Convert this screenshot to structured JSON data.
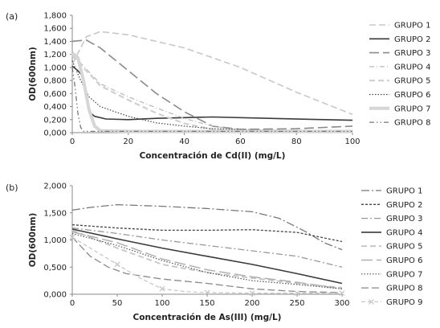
{
  "chart_data": [
    {
      "type": "line",
      "panel_label": "(a)",
      "xlabel": "Concentración de Cd(II) (mg/L)",
      "ylabel": "OD(600nm)",
      "xlim": [
        0,
        100
      ],
      "ylim": [
        0,
        1.8
      ],
      "x_ticks": [
        0,
        20,
        40,
        60,
        80,
        100
      ],
      "x_tick_labels": [
        "0",
        "20",
        "40",
        "60",
        "80",
        "100"
      ],
      "y_ticks": [
        0,
        0.2,
        0.4,
        0.6,
        0.8,
        1.0,
        1.2,
        1.4,
        1.6,
        1.8
      ],
      "y_tick_labels": [
        "0,000",
        "0,200",
        "0,400",
        "0,600",
        "0,800",
        "1,000",
        "1,200",
        "1,400",
        "1,600",
        "1,800"
      ],
      "legend_position": "right",
      "grid": false,
      "series": [
        {
          "name": "GRUPO 1",
          "color": "#c8c8c8",
          "dash": "8,4",
          "width": 1.6,
          "points": [
            [
              0,
              1.05
            ],
            [
              5,
              1.47
            ],
            [
              10,
              1.55
            ],
            [
              20,
              1.5
            ],
            [
              40,
              1.3
            ],
            [
              60,
              1.0
            ],
            [
              80,
              0.62
            ],
            [
              100,
              0.28
            ]
          ]
        },
        {
          "name": "GRUPO 2",
          "color": "#3a3a3a",
          "dash": "",
          "width": 1.6,
          "points": [
            [
              0,
              1.02
            ],
            [
              2,
              0.95
            ],
            [
              4,
              0.85
            ],
            [
              5,
              0.6
            ],
            [
              6,
              0.32
            ],
            [
              8,
              0.25
            ],
            [
              12,
              0.21
            ],
            [
              20,
              0.2
            ],
            [
              30,
              0.22
            ],
            [
              50,
              0.24
            ],
            [
              70,
              0.22
            ],
            [
              100,
              0.19
            ]
          ]
        },
        {
          "name": "GRUPO 3",
          "color": "#8a8a8a",
          "dash": "12,5",
          "width": 1.6,
          "points": [
            [
              0,
              1.4
            ],
            [
              5,
              1.42
            ],
            [
              10,
              1.3
            ],
            [
              20,
              0.95
            ],
            [
              30,
              0.6
            ],
            [
              40,
              0.32
            ],
            [
              50,
              0.1
            ],
            [
              60,
              0.05
            ],
            [
              80,
              0.06
            ],
            [
              100,
              0.1
            ]
          ]
        },
        {
          "name": "GRUPO 4",
          "color": "#bbbbbb",
          "dash": "6,3,1,3",
          "width": 1.3,
          "points": [
            [
              0,
              1.2
            ],
            [
              10,
              0.75
            ],
            [
              20,
              0.55
            ],
            [
              30,
              0.38
            ],
            [
              40,
              0.22
            ],
            [
              50,
              0.1
            ],
            [
              60,
              0.04
            ],
            [
              80,
              0.02
            ],
            [
              100,
              0.02
            ]
          ]
        },
        {
          "name": "GRUPO 5",
          "color": "#cfcfcf",
          "dash": "7,4",
          "width": 2.2,
          "points": [
            [
              0,
              1.18
            ],
            [
              5,
              0.95
            ],
            [
              10,
              0.72
            ],
            [
              20,
              0.5
            ],
            [
              30,
              0.3
            ],
            [
              40,
              0.14
            ],
            [
              50,
              0.05
            ],
            [
              60,
              0.03
            ],
            [
              100,
              0.03
            ]
          ]
        },
        {
          "name": "GRUPO 6",
          "color": "#444444",
          "dash": "1.5,2",
          "width": 1.2,
          "points": [
            [
              0,
              1.1
            ],
            [
              3,
              0.8
            ],
            [
              6,
              0.55
            ],
            [
              10,
              0.4
            ],
            [
              20,
              0.25
            ],
            [
              30,
              0.15
            ],
            [
              40,
              0.1
            ],
            [
              50,
              0.06
            ],
            [
              70,
              0.04
            ],
            [
              100,
              0.03
            ]
          ]
        },
        {
          "name": "GRUPO 7",
          "color": "#d6d6d6",
          "dash": "",
          "width": 4,
          "points": [
            [
              0,
              1.22
            ],
            [
              2,
              1.15
            ],
            [
              4,
              0.8
            ],
            [
              6,
              0.35
            ],
            [
              8,
              0.1
            ],
            [
              10,
              0.03
            ],
            [
              20,
              0.02
            ],
            [
              100,
              0.02
            ]
          ]
        },
        {
          "name": "GRUPO 8",
          "color": "#777777",
          "dash": "6,3,1.5,3,1.5,3",
          "width": 1.3,
          "points": [
            [
              0,
              1.0
            ],
            [
              1,
              0.7
            ],
            [
              2,
              0.3
            ],
            [
              3,
              0.08
            ],
            [
              4,
              0.02
            ],
            [
              10,
              0.02
            ],
            [
              100,
              0.02
            ]
          ]
        }
      ]
    },
    {
      "type": "line",
      "panel_label": "(b)",
      "xlabel": "Concentración de As(III) (mg/L)",
      "ylabel": "OD(600nm)",
      "xlim": [
        0,
        300
      ],
      "ylim": [
        0,
        2.0
      ],
      "x_ticks": [
        0,
        50,
        100,
        150,
        200,
        250,
        300
      ],
      "x_tick_labels": [
        "0",
        "50",
        "100",
        "150",
        "200",
        "250",
        "300"
      ],
      "y_ticks": [
        0,
        0.5,
        1.0,
        1.5,
        2.0
      ],
      "y_tick_labels": [
        "0,000",
        "0,500",
        "1,000",
        "1,500",
        "2,000"
      ],
      "legend_position": "right",
      "grid": false,
      "series": [
        {
          "name": "GRUPO 1",
          "color": "#777777",
          "dash": "10,3,2,3",
          "width": 1.3,
          "points": [
            [
              0,
              1.55
            ],
            [
              20,
              1.6
            ],
            [
              50,
              1.65
            ],
            [
              100,
              1.62
            ],
            [
              150,
              1.58
            ],
            [
              200,
              1.52
            ],
            [
              230,
              1.4
            ],
            [
              260,
              1.15
            ],
            [
              280,
              0.95
            ],
            [
              300,
              0.82
            ]
          ]
        },
        {
          "name": "GRUPO 2",
          "color": "#444444",
          "dash": "3,2",
          "width": 1.3,
          "points": [
            [
              0,
              1.28
            ],
            [
              50,
              1.22
            ],
            [
              100,
              1.18
            ],
            [
              150,
              1.18
            ],
            [
              200,
              1.19
            ],
            [
              250,
              1.14
            ],
            [
              300,
              0.97
            ]
          ]
        },
        {
          "name": "GRUPO 3",
          "color": "#999999",
          "dash": "8,3,2,3",
          "width": 1.3,
          "points": [
            [
              0,
              1.22
            ],
            [
              50,
              1.12
            ],
            [
              100,
              1.0
            ],
            [
              150,
              0.9
            ],
            [
              200,
              0.8
            ],
            [
              250,
              0.7
            ],
            [
              300,
              0.5
            ]
          ]
        },
        {
          "name": "GRUPO 4",
          "color": "#3a3a3a",
          "dash": "",
          "width": 1.6,
          "points": [
            [
              0,
              1.2
            ],
            [
              50,
              1.02
            ],
            [
              100,
              0.85
            ],
            [
              150,
              0.7
            ],
            [
              200,
              0.55
            ],
            [
              250,
              0.38
            ],
            [
              300,
              0.2
            ]
          ]
        },
        {
          "name": "GRUPO 5",
          "color": "#c4c4c4",
          "dash": "7,4",
          "width": 1.8,
          "points": [
            [
              0,
              1.18
            ],
            [
              50,
              0.85
            ],
            [
              100,
              0.55
            ],
            [
              150,
              0.4
            ],
            [
              200,
              0.3
            ],
            [
              250,
              0.2
            ],
            [
              300,
              0.12
            ]
          ]
        },
        {
          "name": "GRUPO 6",
          "color": "#b0b0b0",
          "dash": "14,5",
          "width": 1.5,
          "points": [
            [
              0,
              1.15
            ],
            [
              50,
              0.95
            ],
            [
              100,
              0.65
            ],
            [
              150,
              0.45
            ],
            [
              200,
              0.32
            ],
            [
              250,
              0.22
            ],
            [
              300,
              0.1
            ]
          ]
        },
        {
          "name": "GRUPO 7",
          "color": "#555555",
          "dash": "1.5,2",
          "width": 1.2,
          "points": [
            [
              0,
              1.12
            ],
            [
              50,
              0.9
            ],
            [
              100,
              0.62
            ],
            [
              150,
              0.4
            ],
            [
              200,
              0.25
            ],
            [
              250,
              0.18
            ],
            [
              300,
              0.1
            ]
          ]
        },
        {
          "name": "GRUPO 8",
          "color": "#8a8a8a",
          "dash": "9,4",
          "width": 1.3,
          "points": [
            [
              0,
              1.05
            ],
            [
              20,
              0.7
            ],
            [
              40,
              0.5
            ],
            [
              60,
              0.38
            ],
            [
              100,
              0.28
            ],
            [
              150,
              0.2
            ],
            [
              200,
              0.1
            ],
            [
              250,
              0.05
            ],
            [
              300,
              0.03
            ]
          ]
        },
        {
          "name": "GRUPO 9",
          "color": "#c8c8c8",
          "dash": "5,3",
          "width": 1.3,
          "marker": "x",
          "points": [
            [
              0,
              1.05
            ],
            [
              25,
              0.8
            ],
            [
              50,
              0.55
            ],
            [
              75,
              0.3
            ],
            [
              100,
              0.1
            ],
            [
              125,
              0.05
            ],
            [
              150,
              0.03
            ],
            [
              200,
              0.02
            ],
            [
              300,
              0.02
            ]
          ],
          "marker_points": [
            [
              0,
              1.05
            ],
            [
              50,
              0.55
            ],
            [
              100,
              0.1
            ],
            [
              150,
              0.03
            ],
            [
              200,
              0.02
            ],
            [
              250,
              0.02
            ],
            [
              300,
              0.02
            ]
          ]
        }
      ]
    }
  ]
}
